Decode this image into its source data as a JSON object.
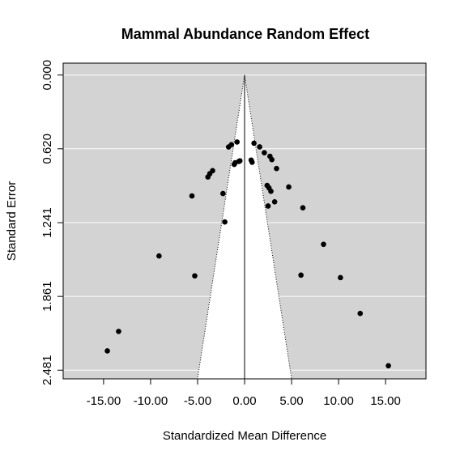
{
  "chart_data": {
    "type": "scatter",
    "title": "Mammal Abundance Random Effect",
    "xlabel": "Standardized Mean Difference",
    "ylabel": "Standard Error",
    "xlim": [
      -19.3,
      19.3
    ],
    "ylim": [
      2.554,
      -0.1
    ],
    "y_reversed": true,
    "x_ticks": [
      -15,
      -10,
      -5,
      0,
      5,
      10,
      15
    ],
    "x_tick_labels": [
      "-15.00",
      "-10.00",
      "-5.00",
      "0.00",
      "5.00",
      "10.00",
      "15.00"
    ],
    "y_ticks": [
      0.0,
      0.62,
      1.241,
      1.861,
      2.481
    ],
    "y_tick_labels": [
      "0.000",
      "0.620",
      "1.241",
      "1.861",
      "2.481"
    ],
    "grid": true,
    "background_color": "#d3d3d3",
    "funnel": {
      "center": 0.0,
      "z": 1.96,
      "fill": "#ffffff"
    },
    "points": {
      "x": [
        -14.6,
        -13.4,
        -9.1,
        -5.6,
        -5.3,
        -3.9,
        -3.7,
        -3.4,
        -2.3,
        -2.1,
        -1.7,
        -1.4,
        -1.1,
        -1.0,
        -0.8,
        -0.6,
        -0.5,
        0.7,
        0.8,
        1.0,
        1.6,
        2.1,
        2.4,
        2.5,
        2.6,
        2.7,
        2.8,
        2.9,
        3.2,
        3.4,
        4.7,
        6.0,
        6.2,
        8.4,
        10.2,
        12.3,
        15.3
      ],
      "y": [
        2.319,
        2.155,
        1.521,
        1.016,
        1.688,
        0.857,
        0.829,
        0.804,
        0.996,
        1.235,
        0.605,
        0.585,
        0.751,
        0.737,
        0.563,
        0.726,
        0.721,
        0.715,
        0.733,
        0.573,
        0.604,
        0.653,
        0.928,
        1.101,
        0.949,
        0.683,
        0.977,
        0.711,
        1.066,
        0.786,
        0.941,
        1.682,
        1.116,
        1.423,
        1.703,
        2.004,
        2.444
      ]
    },
    "point_color": "#000000"
  }
}
